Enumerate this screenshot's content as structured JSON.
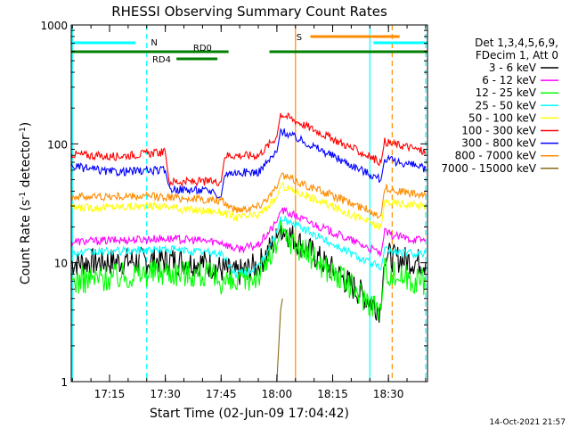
{
  "chart_data": {
    "type": "line",
    "title": "RHESSI Observing Summary Count Rates",
    "xlabel": "Start Time (02-Jun-09 17:04:42)",
    "ylabel": "Count Rate (s^-1 detector^-1)",
    "ylabel_parts": [
      "Count Rate (s",
      "-1",
      " detector",
      "-1",
      ")"
    ],
    "y_scale": "log",
    "xlim": [
      "17:04:42",
      "18:40:30"
    ],
    "ylim": [
      1,
      1000
    ],
    "x_ticks": [
      "17:15",
      "17:30",
      "17:45",
      "18:00",
      "18:15",
      "18:30"
    ],
    "y_ticks": [
      "1",
      "10",
      "100",
      "1000"
    ],
    "grid": false,
    "legend_position": "right",
    "legend_header": [
      "Det 1,3,4,5,6,9,",
      "FDecim 1, Att 0"
    ],
    "series": [
      {
        "name": "3 - 6 keV",
        "color": "#000000",
        "points": [
          [
            "17:04:42",
            10
          ],
          [
            "17:30",
            10.5
          ],
          [
            "17:40",
            10
          ],
          [
            "17:49",
            8
          ],
          [
            "17:55",
            9.5
          ],
          [
            "18:00",
            16
          ],
          [
            "18:01",
            20
          ],
          [
            "18:28",
            4
          ],
          [
            "18:29",
            12
          ],
          [
            "18:31",
            11
          ],
          [
            "18:35",
            10.5
          ],
          [
            "18:40",
            10
          ]
        ]
      },
      {
        "name": "6 - 12 keV",
        "color": "#ff00ff",
        "points": [
          [
            "17:04:42",
            15
          ],
          [
            "17:30",
            16
          ],
          [
            "17:45",
            15
          ],
          [
            "17:49",
            13
          ],
          [
            "17:55",
            14
          ],
          [
            "18:00",
            22
          ],
          [
            "18:01",
            28
          ],
          [
            "18:28",
            12
          ],
          [
            "18:29",
            18
          ],
          [
            "18:31",
            17
          ],
          [
            "18:35",
            16
          ],
          [
            "18:40",
            15.5
          ]
        ]
      },
      {
        "name": "12 - 25 keV",
        "color": "#00ff00",
        "points": [
          [
            "17:04:42",
            7
          ],
          [
            "17:30",
            8.5
          ],
          [
            "17:40",
            8
          ],
          [
            "17:49",
            6.5
          ],
          [
            "17:55",
            8
          ],
          [
            "18:00",
            14
          ],
          [
            "18:01",
            18
          ],
          [
            "18:28",
            4
          ],
          [
            "18:29",
            9
          ],
          [
            "18:31",
            8
          ],
          [
            "18:35",
            7.5
          ],
          [
            "18:40",
            7
          ]
        ]
      },
      {
        "name": "25 - 50 keV",
        "color": "#00ffff",
        "points": [
          [
            "17:04:42",
            12
          ],
          [
            "17:30",
            13
          ],
          [
            "17:45",
            12
          ],
          [
            "17:49",
            8
          ],
          [
            "17:55",
            9
          ],
          [
            "18:00",
            18
          ],
          [
            "18:01",
            24
          ],
          [
            "18:28",
            9
          ],
          [
            "18:29",
            13
          ],
          [
            "18:31",
            12.5
          ],
          [
            "18:35",
            12
          ],
          [
            "18:40",
            12
          ]
        ]
      },
      {
        "name": "50 - 100 keV",
        "color": "#ffff00",
        "points": [
          [
            "17:04:42",
            29
          ],
          [
            "17:30",
            30
          ],
          [
            "17:35",
            28
          ],
          [
            "17:45",
            27
          ],
          [
            "17:49",
            24
          ],
          [
            "17:55",
            25
          ],
          [
            "18:00",
            35
          ],
          [
            "18:01",
            45
          ],
          [
            "18:28",
            20
          ],
          [
            "18:29",
            33
          ],
          [
            "18:31",
            32
          ],
          [
            "18:35",
            31
          ],
          [
            "18:40",
            30
          ]
        ]
      },
      {
        "name": "100 - 300 keV",
        "color": "#ff0000",
        "points": [
          [
            "17:04:42",
            82
          ],
          [
            "17:15",
            78
          ],
          [
            "17:30",
            85
          ],
          [
            "17:31",
            48
          ],
          [
            "17:45",
            48
          ],
          [
            "17:46",
            80
          ],
          [
            "17:55",
            80
          ],
          [
            "18:00",
            115
          ],
          [
            "18:01",
            180
          ],
          [
            "18:28",
            70
          ],
          [
            "18:29",
            105
          ],
          [
            "18:31",
            100
          ],
          [
            "18:35",
            95
          ],
          [
            "18:40",
            85
          ]
        ]
      },
      {
        "name": "300 - 800 keV",
        "color": "#0000ff",
        "points": [
          [
            "17:04:42",
            65
          ],
          [
            "17:15",
            58
          ],
          [
            "17:30",
            60
          ],
          [
            "17:31",
            42
          ],
          [
            "17:43",
            40
          ],
          [
            "17:44",
            35
          ],
          [
            "17:45",
            36
          ],
          [
            "17:46",
            57
          ],
          [
            "17:55",
            58
          ],
          [
            "18:00",
            85
          ],
          [
            "18:01",
            130
          ],
          [
            "18:28",
            50
          ],
          [
            "18:29",
            75
          ],
          [
            "18:31",
            72
          ],
          [
            "18:35",
            68
          ],
          [
            "18:40",
            62
          ]
        ]
      },
      {
        "name": "800 - 7000 keV",
        "color": "#ff8c00",
        "points": [
          [
            "17:04:42",
            36
          ],
          [
            "17:30",
            36
          ],
          [
            "17:45",
            33
          ],
          [
            "17:49",
            28
          ],
          [
            "17:55",
            30
          ],
          [
            "18:00",
            42
          ],
          [
            "18:01",
            55
          ],
          [
            "18:28",
            25
          ],
          [
            "18:29",
            43
          ],
          [
            "18:31",
            41
          ],
          [
            "18:35",
            39
          ],
          [
            "18:40",
            36
          ]
        ]
      },
      {
        "name": "7000 - 15000 keV",
        "color": "#8b6914",
        "points": [
          [
            "18:00",
            1
          ],
          [
            "18:00:30",
            2
          ],
          [
            "18:01",
            4
          ],
          [
            "18:01:30",
            5
          ]
        ]
      }
    ],
    "top_bars": [
      {
        "label": "N",
        "color": "#00ffff",
        "row": 1,
        "segments": [
          [
            "17:04:42",
            "17:22"
          ],
          [
            "18:26",
            "18:40:30"
          ]
        ],
        "label_at": "17:27"
      },
      {
        "label": "RD0",
        "color": "#008000",
        "row": 2,
        "segments": [
          [
            "17:04:42",
            "17:47"
          ],
          [
            "17:58",
            "18:40:30"
          ]
        ],
        "label_at": "17:40"
      },
      {
        "label": "RD4",
        "color": "#008000",
        "row": 3,
        "segments": [
          [
            "17:33",
            "17:44"
          ]
        ],
        "label_at": "17:29"
      },
      {
        "label": "S",
        "color": "#ff8c00",
        "row": 0,
        "segments": [
          [
            "18:09",
            "18:33"
          ]
        ],
        "label_at": "18:06"
      }
    ],
    "vertical_markers": [
      {
        "time": "17:05",
        "color": "#00ffff",
        "style": "solid"
      },
      {
        "time": "17:25",
        "color": "#00ffff",
        "style": "dashed"
      },
      {
        "time": "18:05",
        "color": "#ff8c00",
        "style": "solid"
      },
      {
        "time": "18:25",
        "color": "#00ffff",
        "style": "solid"
      },
      {
        "time": "18:31",
        "color": "#ff8c00",
        "style": "dashed"
      },
      {
        "time": "18:40",
        "color": "#00ffff",
        "style": "dashed"
      }
    ]
  },
  "footer_timestamp": "14-Oct-2021 21:57"
}
